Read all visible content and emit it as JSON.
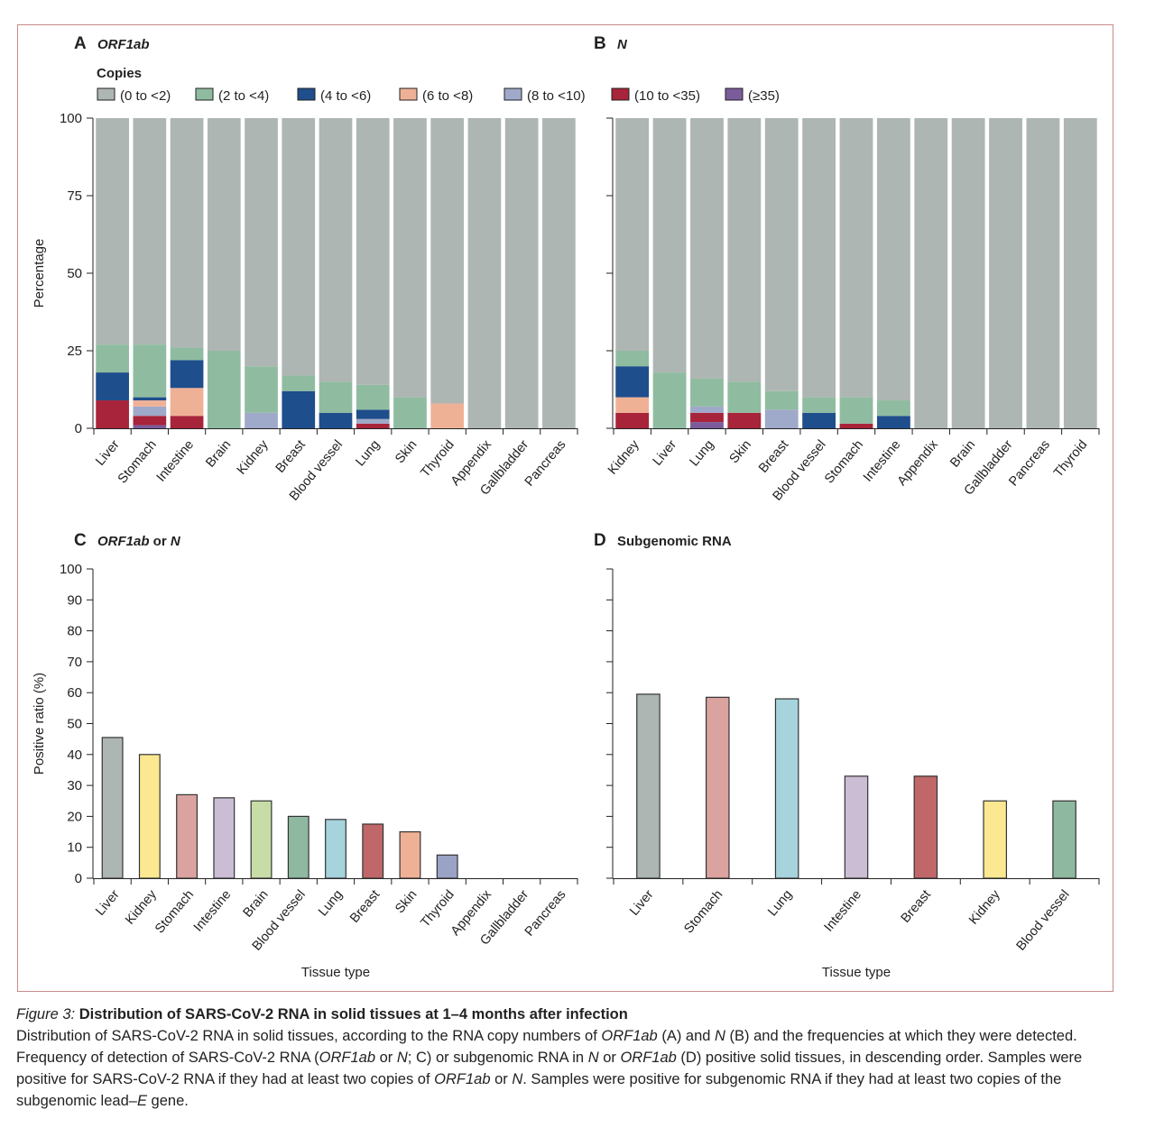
{
  "chart_data": [
    {
      "panel_letter": "A",
      "title": "ORF1ab",
      "type": "bar",
      "stacked": true,
      "ylabel": "Percentage",
      "ylim": [
        0,
        100
      ],
      "yticks": [
        0,
        25,
        50,
        75,
        100
      ],
      "legend": {
        "title": "Copies",
        "placement": "top",
        "entries": [
          "(0 to <2)",
          "(2 to <4)",
          "(4 to <6)",
          "(6 to <8)",
          "(8 to <10)",
          "(10 to <35)",
          "(≥35)"
        ],
        "colors": [
          "#aeb6b3",
          "#8fbca0",
          "#1f4e8c",
          "#efb196",
          "#9fa9c9",
          "#a8243a",
          "#7a5c9b"
        ]
      },
      "categories": [
        "Liver",
        "Stomach",
        "Intestine",
        "Brain",
        "Kidney",
        "Breast",
        "Blood vessel",
        "Lung",
        "Skin",
        "Thyroid",
        "Appendix",
        "Gallbladder",
        "Pancreas"
      ],
      "series": [
        {
          "name": "(0 to <2)",
          "values": [
            73,
            73,
            74,
            75,
            80,
            83,
            85,
            86,
            90,
            92,
            100,
            100,
            100
          ]
        },
        {
          "name": "(2 to <4)",
          "values": [
            9,
            17,
            4,
            25,
            15,
            5,
            10,
            8,
            10,
            0,
            0,
            0,
            0
          ]
        },
        {
          "name": "(4 to <6)",
          "values": [
            9,
            1,
            9,
            0,
            0,
            12,
            5,
            3,
            0,
            0,
            0,
            0,
            0
          ]
        },
        {
          "name": "(6 to <8)",
          "values": [
            0,
            2,
            9,
            0,
            0,
            0,
            0,
            0,
            0,
            8,
            0,
            0,
            0
          ]
        },
        {
          "name": "(8 to <10)",
          "values": [
            0,
            3,
            0,
            0,
            5,
            0,
            0,
            1.5,
            0,
            0,
            0,
            0,
            0
          ]
        },
        {
          "name": "(10 to <35)",
          "values": [
            9,
            3,
            4,
            0,
            0,
            0,
            0,
            1.5,
            0,
            0,
            0,
            0,
            0
          ]
        },
        {
          "name": "(≥35)",
          "values": [
            0,
            1,
            0,
            0,
            0,
            0,
            0,
            0,
            0,
            0,
            0,
            0,
            0
          ]
        }
      ]
    },
    {
      "panel_letter": "B",
      "title": "N",
      "type": "bar",
      "stacked": true,
      "ylim": [
        0,
        100
      ],
      "categories": [
        "Kidney",
        "Liver",
        "Lung",
        "Skin",
        "Breast",
        "Blood vessel",
        "Stomach",
        "Intestine",
        "Appendix",
        "Brain",
        "Gallbladder",
        "Pancreas",
        "Thyroid"
      ],
      "series": [
        {
          "name": "(0 to <2)",
          "values": [
            75,
            82,
            84,
            85,
            88,
            90,
            90,
            91,
            100,
            100,
            100,
            100,
            100
          ]
        },
        {
          "name": "(2 to <4)",
          "values": [
            5,
            18,
            9,
            10,
            6,
            5,
            8.5,
            5,
            0,
            0,
            0,
            0,
            0
          ]
        },
        {
          "name": "(4 to <6)",
          "values": [
            10,
            0,
            0,
            0,
            0,
            5,
            0,
            4,
            0,
            0,
            0,
            0,
            0
          ]
        },
        {
          "name": "(6 to <8)",
          "values": [
            5,
            0,
            0,
            0,
            0,
            0,
            0,
            0,
            0,
            0,
            0,
            0,
            0
          ]
        },
        {
          "name": "(8 to <10)",
          "values": [
            0,
            0,
            2,
            0,
            6,
            0,
            0,
            0,
            0,
            0,
            0,
            0,
            0
          ]
        },
        {
          "name": "(10 to <35)",
          "values": [
            5,
            0,
            3,
            5,
            0,
            0,
            1.5,
            0,
            0,
            0,
            0,
            0,
            0
          ]
        },
        {
          "name": "(≥35)",
          "values": [
            0,
            0,
            2,
            0,
            0,
            0,
            0,
            0,
            0,
            0,
            0,
            0,
            0
          ]
        }
      ]
    },
    {
      "panel_letter": "C",
      "title": "ORF1ab or N",
      "type": "bar",
      "ylabel": "Positive ratio (%)",
      "xlabel": "Tissue type",
      "ylim": [
        0,
        100
      ],
      "yticks": [
        0,
        10,
        20,
        30,
        40,
        50,
        60,
        70,
        80,
        90,
        100
      ],
      "categories": [
        "Liver",
        "Kidney",
        "Stomach",
        "Intestine",
        "Brain",
        "Blood vessel",
        "Lung",
        "Breast",
        "Skin",
        "Thyroid",
        "Appendix",
        "Gallbladder",
        "Pancreas"
      ],
      "values": [
        45.5,
        40,
        27,
        26,
        25,
        20,
        19,
        17.5,
        15,
        7.5,
        0,
        0,
        0
      ],
      "colors": [
        "#aeb6b3",
        "#fbe890",
        "#dba39f",
        "#cbbdd4",
        "#c7dca6",
        "#8fb8a0",
        "#a6d3dc",
        "#bf6769",
        "#efb196",
        "#9aa3c5",
        "#cccccc",
        "#cccccc",
        "#cccccc"
      ]
    },
    {
      "panel_letter": "D",
      "title": "Subgenomic RNA",
      "type": "bar",
      "xlabel": "Tissue type",
      "ylim": [
        0,
        100
      ],
      "categories": [
        "Liver",
        "Stomach",
        "Lung",
        "Intestine",
        "Breast",
        "Kidney",
        "Blood vessel"
      ],
      "values": [
        59.5,
        58.5,
        58,
        33,
        33,
        25,
        25
      ],
      "colors": [
        "#aeb6b3",
        "#dba39f",
        "#a6d3dc",
        "#cbbdd4",
        "#bf6769",
        "#fbe890",
        "#8fb8a0"
      ]
    }
  ],
  "caption": {
    "label": "Figure 3:",
    "title": "Distribution of SARS-CoV-2 RNA in solid tissues at 1–4 months after infection",
    "body_html": "Distribution of SARS-CoV-2 RNA in solid tissues, according to the RNA copy numbers of <i>ORF1ab</i> (A) and <i>N</i> (B) and the frequencies at which they were detected. Frequency of detection of SARS-CoV-2 RNA (<i>ORF1ab</i> or <i>N</i>; C) or subgenomic RNA in <i>N</i> or <i>ORF1ab</i> (D) positive solid tissues, in descending order. Samples were positive for SARS-CoV-2 RNA if they had at least two copies of <i>ORF1ab</i> or <i>N</i>. Samples were positive for subgenomic RNA if they had at least two copies of the subgenomic lead–<i>E</i> gene."
  }
}
